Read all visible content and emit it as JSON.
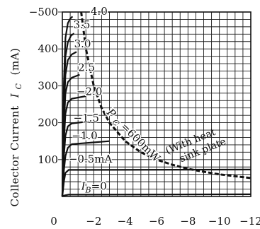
{
  "chart_data": {
    "type": "line",
    "ylabel": "Collector Current",
    "ylabel_symbol": "I",
    "ylabel_subscript": "C",
    "ylabel_unit": "(mA)",
    "x_ticks": [
      "0",
      "−2",
      "−4",
      "−6",
      "−8",
      "−10",
      "−12"
    ],
    "y_ticks": [
      "100",
      "200",
      "300",
      "400",
      "−500"
    ],
    "xlim": [
      0,
      -12
    ],
    "ylim": [
      0,
      500
    ],
    "grid": true,
    "series": [
      {
        "name": "I_B=0",
        "label_main": "I",
        "label_sub": "B",
        "label_rest": "=0",
        "label_x": -1.2,
        "label_y": 18,
        "points": [
          [
            0,
            0
          ],
          [
            -0.15,
            3
          ],
          [
            -0.4,
            5
          ],
          [
            -12,
            6
          ]
        ]
      },
      {
        "name": "−0.5mA",
        "label_main": "−0.5mA",
        "label_x": -0.4,
        "label_y": 92,
        "points": [
          [
            0,
            0
          ],
          [
            -0.1,
            40
          ],
          [
            -0.2,
            64
          ],
          [
            -0.4,
            72
          ],
          [
            -12,
            73
          ]
        ]
      },
      {
        "name": "−1.0",
        "label_main": "−1.0",
        "label_x": -0.6,
        "label_y": 155,
        "points": [
          [
            0,
            0
          ],
          [
            -0.1,
            70
          ],
          [
            -0.2,
            110
          ],
          [
            -0.35,
            132
          ],
          [
            -0.6,
            142
          ],
          [
            -3,
            150
          ]
        ]
      },
      {
        "name": "−1.5",
        "label_main": "−1.5",
        "label_x": -0.7,
        "label_y": 203,
        "points": [
          [
            0,
            0
          ],
          [
            -0.1,
            110
          ],
          [
            -0.2,
            165
          ],
          [
            -0.35,
            190
          ],
          [
            -0.6,
            198
          ],
          [
            -2,
            205
          ]
        ]
      },
      {
        "name": "−2.0",
        "label_main": "−2.0",
        "label_x": -0.9,
        "label_y": 275,
        "points": [
          [
            0,
            0
          ],
          [
            -0.1,
            150
          ],
          [
            -0.2,
            225
          ],
          [
            -0.35,
            255
          ],
          [
            -0.6,
            265
          ],
          [
            -1.5,
            272
          ]
        ]
      },
      {
        "name": "−2.5",
        "label_main": "2.5",
        "label_x": -1.0,
        "label_y": 340,
        "points": [
          [
            0,
            0
          ],
          [
            -0.1,
            190
          ],
          [
            -0.2,
            280
          ],
          [
            -0.35,
            310
          ],
          [
            -0.6,
            322
          ],
          [
            -1.1,
            330
          ]
        ]
      },
      {
        "name": "−3.0",
        "label_main": "3.0",
        "label_x": -0.75,
        "label_y": 404,
        "points": [
          [
            0,
            0
          ],
          [
            -0.1,
            230
          ],
          [
            -0.2,
            330
          ],
          [
            -0.35,
            370
          ],
          [
            -0.6,
            385
          ],
          [
            -0.9,
            392
          ]
        ]
      },
      {
        "name": "−3.5",
        "label_main": "3.5",
        "label_x": -0.7,
        "label_y": 456,
        "points": [
          [
            0,
            0
          ],
          [
            -0.1,
            270
          ],
          [
            -0.2,
            380
          ],
          [
            -0.35,
            418
          ],
          [
            -0.55,
            436
          ],
          [
            -0.75,
            442
          ]
        ]
      },
      {
        "name": "4.0",
        "label_main": "4.0",
        "label_x": -1.8,
        "label_y": 492,
        "points": [
          [
            0,
            0
          ],
          [
            -0.1,
            310
          ],
          [
            -0.2,
            430
          ],
          [
            -0.35,
            470
          ],
          [
            -0.5,
            482
          ],
          [
            -0.65,
            488
          ]
        ]
      }
    ],
    "power_curve": {
      "label": "P_C=600mW",
      "label_main": "P",
      "label_sub": "C",
      "label_rest": "=600mW",
      "annotation_line1": "(With heat",
      "annotation_line2": "sink plate",
      "points": [
        [
          -1.2,
          500
        ],
        [
          -1.5,
          400
        ],
        [
          -2,
          300
        ],
        [
          -2.5,
          240
        ],
        [
          -3,
          200
        ],
        [
          -4,
          150
        ],
        [
          -5,
          120
        ],
        [
          -6,
          100
        ],
        [
          -7,
          86
        ],
        [
          -8,
          75
        ],
        [
          -9,
          67
        ],
        [
          -10,
          60
        ],
        [
          -11,
          55
        ],
        [
          -12,
          50
        ]
      ]
    }
  }
}
